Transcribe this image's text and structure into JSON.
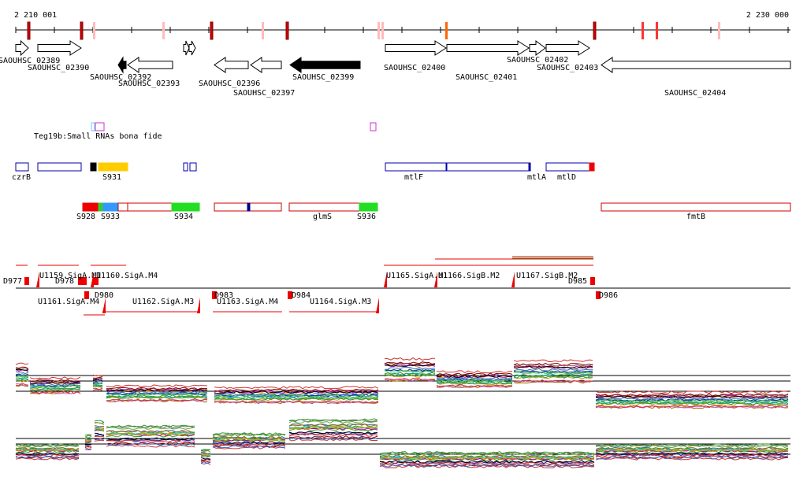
{
  "axis": {
    "start": "2 210 001",
    "end": "2 230 000"
  },
  "genes": [
    "SAOUHSC_02389",
    "SAOUHSC_02390",
    "SAOUHSC_02392",
    "SAOUHSC_02393",
    "SAOUHSC_02396",
    "SAOUHSC_02397",
    "SAOUHSC_02399",
    "SAOUHSC_02400",
    "SAOUHSC_02401",
    "SAOUHSC_02402",
    "SAOUHSC_02403",
    "SAOUHSC_02404"
  ],
  "track_label": "Teg19b:Small RNAs bona fide",
  "features": [
    "czrB",
    "S931",
    "mtlF",
    "mtlA",
    "mtlD"
  ],
  "features2": [
    "S928",
    "S933",
    "S934",
    "glmS",
    "S936",
    "fmtB"
  ],
  "promoters": [
    "D977",
    "U1159.SigA.M1",
    "D978",
    "U1160.SigA.M4",
    "U1161.SigA.M4",
    "D980",
    "U1162.SigA.M3",
    "D983",
    "U1163.SigA.M4",
    "D984",
    "U1164.SigA.M3",
    "U1165.SigA.M1",
    "U1166.SigB.M2",
    "U1167.SigB.M2",
    "D985",
    "D986"
  ]
}
